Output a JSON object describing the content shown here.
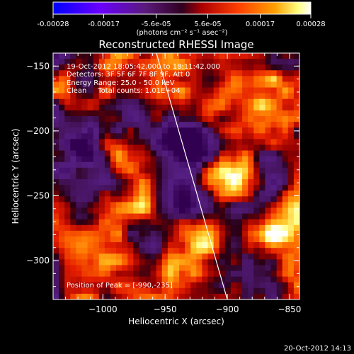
{
  "colorbar": {
    "tick_labels": [
      "-0.00028",
      "-0.00017",
      "-5.6e-05",
      "5.6e-05",
      "0.00017",
      "0.00028"
    ],
    "tick_values": [
      -0.00028,
      -0.00017,
      -5.6e-05,
      5.6e-05,
      0.00017,
      0.00028
    ],
    "range": [
      -0.00028,
      0.00028
    ],
    "units_label": "(photons cm⁻² s⁻¹ asec⁻²)",
    "colors": [
      "#0000ff",
      "#7f00ff",
      "#5a1a7a",
      "#b00000",
      "#ff4000",
      "#ffa000",
      "#ffff80",
      "#ffffff"
    ]
  },
  "chart_data": {
    "type": "heatmap",
    "title": "Reconstructed RHESSI Image",
    "xlabel": "Heliocentric X (arcsec)",
    "ylabel": "Heliocentric Y (arcsec)",
    "xlim": [
      -1040,
      -842
    ],
    "ylim": [
      -330,
      -140
    ],
    "x_ticks": [
      -1000,
      -950,
      -900,
      -850
    ],
    "x_tick_labels": [
      "−1000",
      "−950",
      "−900",
      "−850"
    ],
    "y_ticks": [
      -300,
      -250,
      -200,
      -150
    ],
    "y_tick_labels": [
      "−300",
      "−250",
      "−200",
      "−150"
    ],
    "grid": false,
    "limb_line": {
      "x": [
        -957,
        -900
      ],
      "y": [
        -140,
        -330
      ]
    },
    "peak_position": [
      -990,
      -235
    ],
    "annotations": [
      "19-Oct-2012 18:05:42.000 to 18:11:42.000",
      "Detectors: 3F 5F 6F 7F 8F 9F, Att 0",
      "Energy Range: 25.0 - 50.0 keV",
      "Clean     Total counts: 1.01E+04"
    ],
    "peak_label": "Position of Peak = [-990,-235]"
  },
  "footer": {
    "timestamp": "20-Oct-2012 14:13"
  }
}
